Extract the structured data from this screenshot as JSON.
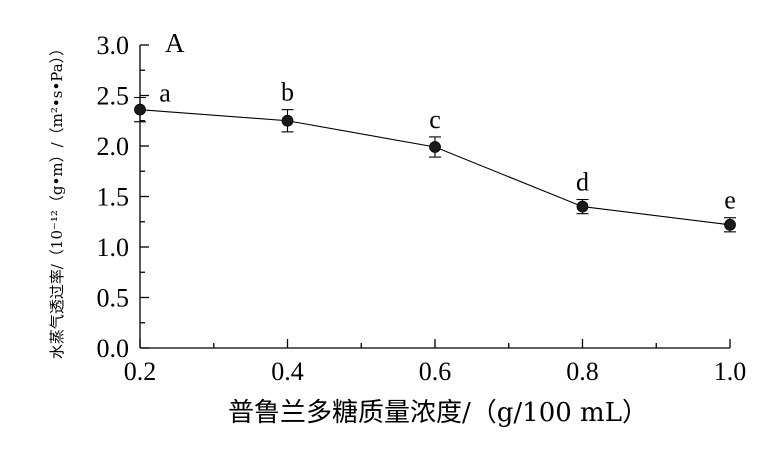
{
  "chart_data": {
    "type": "line",
    "panel_label": "A",
    "title": "",
    "xlabel": "普鲁兰多糖质量浓度/（g/100 mL）",
    "ylabel": "水蒸气透过率/（10⁻¹²（g•m）/（m²•s•Pa））",
    "xlim": [
      0.2,
      1.0
    ],
    "ylim": [
      0.0,
      3.0
    ],
    "x_ticks": [
      "0.2",
      "0.4",
      "0.6",
      "0.8",
      "1.0"
    ],
    "y_ticks": [
      "0.0",
      "0.5",
      "1.0",
      "1.5",
      "2.0",
      "2.5",
      "3.0"
    ],
    "grid": false,
    "series": [
      {
        "x": [
          0.2,
          0.4,
          0.6,
          0.8,
          1.0
        ],
        "y": [
          2.36,
          2.25,
          1.99,
          1.4,
          1.22
        ],
        "error": [
          0.12,
          0.11,
          0.1,
          0.07,
          0.07
        ],
        "labels": [
          "a",
          "b",
          "c",
          "d",
          "e"
        ]
      }
    ]
  }
}
